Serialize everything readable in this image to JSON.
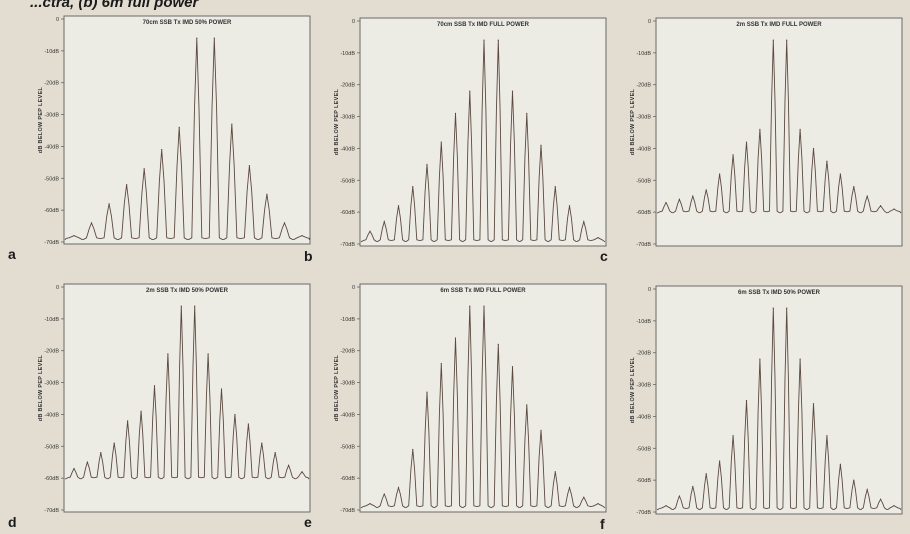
{
  "header": {
    "caption": "...ctra, (b) 6m full power"
  },
  "chart_data": [
    {
      "type": "line",
      "letter": "a",
      "title": "70cm SSB Tx IMD 50% POWER",
      "ylabel": "dB BELOW PEP LEVEL",
      "yticks": [
        "0",
        "-10dB",
        "-20dB",
        "-30dB",
        "-40dB",
        "-50dB",
        "-60dB",
        "-70dB"
      ],
      "ylim": [
        -70,
        0
      ],
      "noise_floor": -69,
      "peaks": [
        -68,
        -64,
        -58,
        -52,
        -47,
        -41,
        -34,
        -6,
        -6,
        -33,
        -46,
        -55,
        -64,
        -68
      ]
    },
    {
      "type": "line",
      "letter": "b",
      "title": "70cm SSB Tx IMD FULL POWER",
      "ylabel": "dB BELOW PEP LEVEL",
      "yticks": [
        "0",
        "-10dB",
        "-20dB",
        "-30dB",
        "-40dB",
        "-50dB",
        "-60dB",
        "-70dB"
      ],
      "ylim": [
        -70,
        0
      ],
      "noise_floor": -69,
      "peaks": [
        -66,
        -63,
        -58,
        -52,
        -45,
        -38,
        -29,
        -22,
        -6,
        -6,
        -22,
        -29,
        -39,
        -52,
        -58,
        -63,
        -68
      ]
    },
    {
      "type": "line",
      "letter": "c",
      "title": "2m SSB Tx IMD FULL POWER",
      "ylabel": "dB BELOW PEP LEVEL",
      "yticks": [
        "0",
        "-10dB",
        "-20dB",
        "-30dB",
        "-40dB",
        "-50dB",
        "-60dB",
        "-70dB"
      ],
      "ylim": [
        -70,
        0
      ],
      "noise_floor": -60,
      "peaks": [
        -57,
        -56,
        -55,
        -53,
        -48,
        -42,
        -38,
        -34,
        -6,
        -6,
        -34,
        -40,
        -44,
        -48,
        -52,
        -55,
        -58,
        -59
      ]
    },
    {
      "type": "line",
      "letter": "d",
      "title": "2m SSB Tx IMD 50% POWER",
      "ylabel": "dB BELOW PEP LEVEL",
      "yticks": [
        "0",
        "-10dB",
        "-20dB",
        "-30dB",
        "-40dB",
        "-50dB",
        "-60dB",
        "-70dB"
      ],
      "ylim": [
        -70,
        0
      ],
      "noise_floor": -60,
      "peaks": [
        -57,
        -55,
        -52,
        -49,
        -42,
        -39,
        -31,
        -21,
        -6,
        -6,
        -21,
        -32,
        -40,
        -43,
        -49,
        -52,
        -56,
        -58
      ]
    },
    {
      "type": "line",
      "letter": "e",
      "title": "6m SSB Tx IMD FULL POWER",
      "ylabel": "dB BELOW PEP LEVEL",
      "yticks": [
        "0",
        "-10dB",
        "-20dB",
        "-30dB",
        "-40dB",
        "-50dB",
        "-60dB",
        "-70dB"
      ],
      "ylim": [
        -70,
        0
      ],
      "noise_floor": -69,
      "peaks": [
        -68,
        -65,
        -63,
        -51,
        -33,
        -24,
        -16,
        -6,
        -6,
        -18,
        -25,
        -37,
        -45,
        -58,
        -63,
        -66,
        -68
      ]
    },
    {
      "type": "line",
      "letter": "f",
      "title": "6m SSB Tx IMD 50% POWER",
      "ylabel": "dB BELOW PEP LEVEL",
      "yticks": [
        "0",
        "-10dB",
        "-20dB",
        "-30dB",
        "-40dB",
        "-50dB",
        "-60dB",
        "-70dB"
      ],
      "ylim": [
        -70,
        0
      ],
      "noise_floor": -69,
      "peaks": [
        -68,
        -65,
        -62,
        -58,
        -54,
        -46,
        -35,
        -22,
        -6,
        -6,
        -22,
        -36,
        -46,
        -55,
        -60,
        -63,
        -66,
        -68
      ]
    }
  ]
}
